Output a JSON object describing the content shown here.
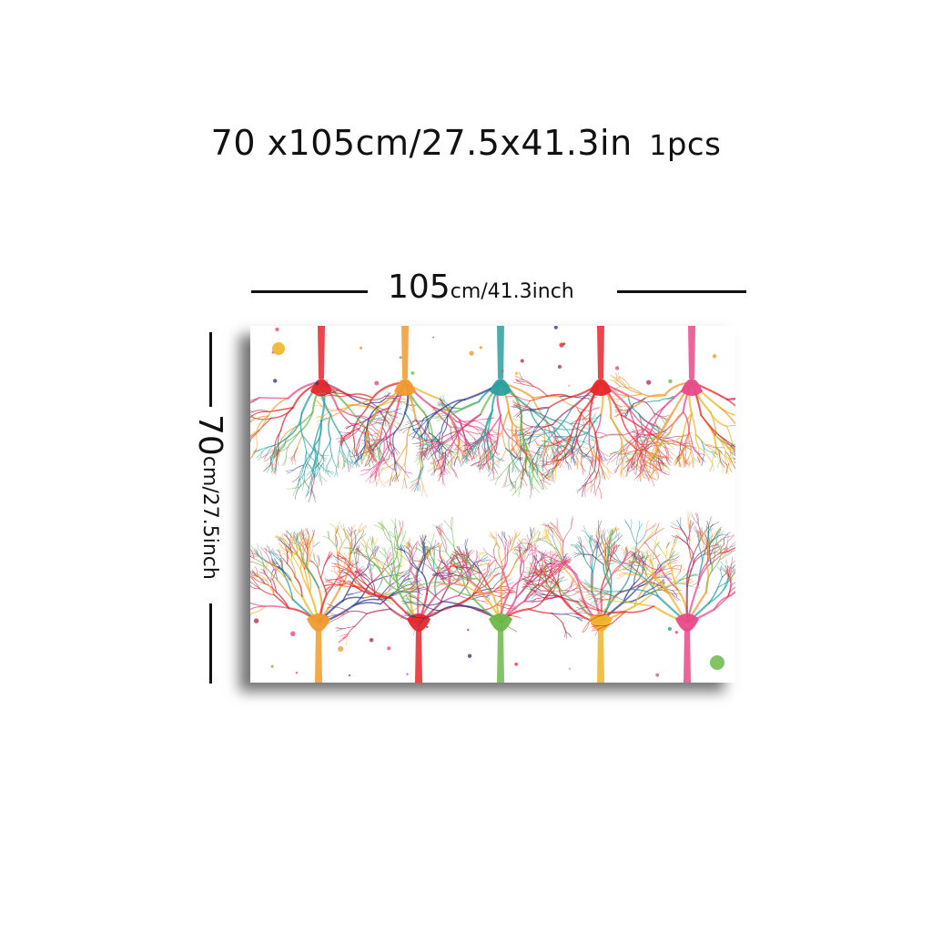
{
  "title": {
    "size_text": "70 x105cm/27.5x41.3in",
    "pcs_number": "1",
    "pcs_unit": "pcs"
  },
  "width_dimension": {
    "number": "105",
    "unit": "cm/41.3inch"
  },
  "height_dimension": {
    "number": "70",
    "unit": "cm/27.5inch"
  },
  "artwork": {
    "subject": "watercolor neurons",
    "colors": [
      "#e8262a",
      "#f29a2e",
      "#f0b428",
      "#e84a8a",
      "#2aa0a0",
      "#2c3e8c",
      "#6bb84a",
      "#b03060"
    ]
  }
}
